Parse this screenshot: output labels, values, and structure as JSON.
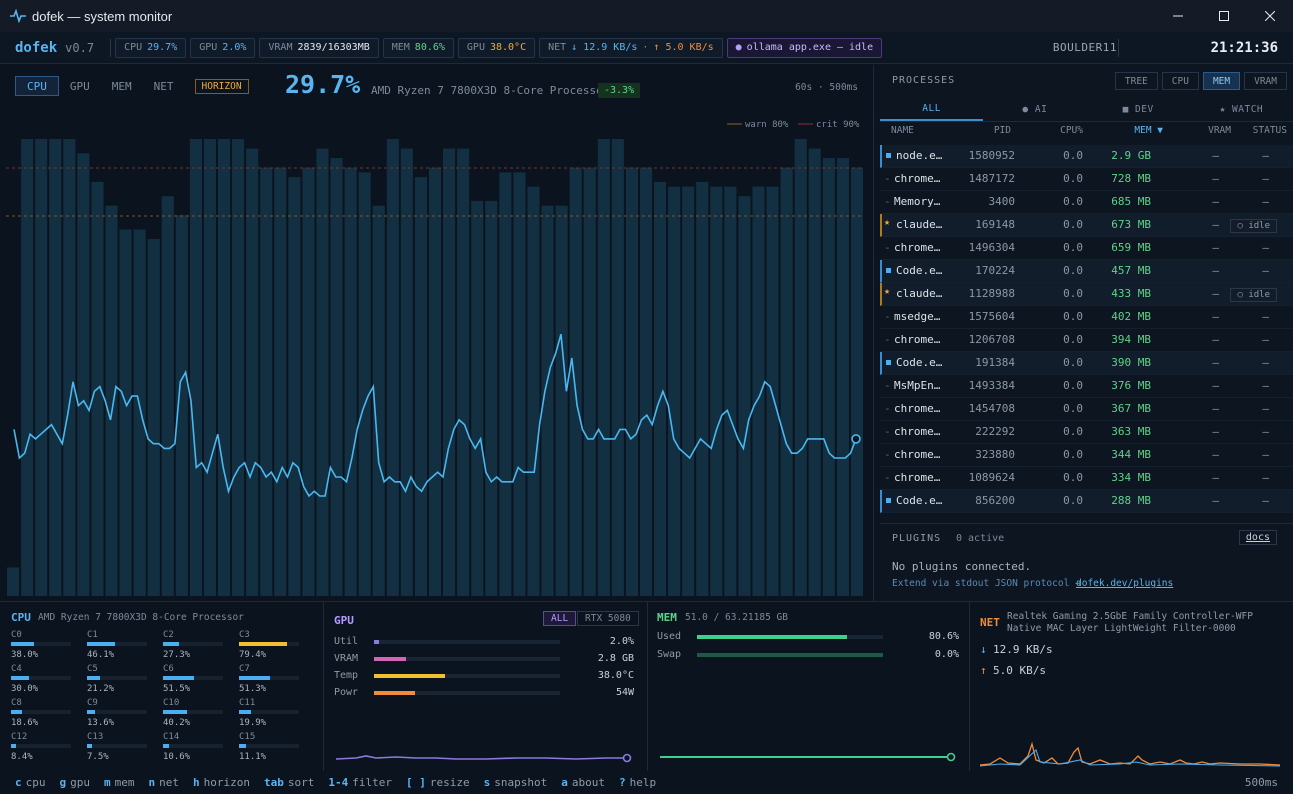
{
  "window": {
    "title": "dofek — system monitor"
  },
  "topbar": {
    "brand": "dofek",
    "version": "v0.7",
    "cpu_label": "CPU",
    "cpu_value": "29.7%",
    "gpu_label": "GPU",
    "gpu_value": "2.0%",
    "vram_label": "VRAM",
    "vram_value": "2839/16303MB",
    "mem_label": "MEM",
    "mem_value": "80.6%",
    "gput_label": "GPU",
    "gput_value": "38.0°C",
    "net_label": "NET",
    "net_down": "↓ 12.9 KB/s",
    "net_dot": "·",
    "net_up": "↑ 5.0 KB/s",
    "ollama": "ollama app.exe — idle",
    "host": "BOULDER11",
    "clock": "21:21:36"
  },
  "main": {
    "tabs": [
      "CPU",
      "GPU",
      "MEM",
      "NET"
    ],
    "active_tab": "CPU",
    "horizon": "HORIZON",
    "big_pct": "29.7%",
    "cpu_name": "AMD Ryzen 7 7800X3D 8-Core Processor",
    "delta": "-3.3%",
    "rate": "60s · 500ms",
    "warn_label": "warn 80%",
    "crit_label": "crit 90%"
  },
  "chart_data": {
    "type": "bar",
    "description_axis": "time samples (60s window, 500ms)",
    "ylim": [
      0,
      100
    ],
    "thresholds": {
      "warn": 80,
      "crit": 90
    },
    "series": [
      {
        "name": "per-sample core peak",
        "values": [
          6,
          74,
          74,
          96,
          96,
          96,
          96,
          96,
          96,
          96,
          96,
          96,
          96,
          96,
          95,
          95,
          93,
          93,
          89,
          87,
          84,
          82,
          82,
          82,
          82,
          79,
          77,
          77,
          77,
          77,
          77,
          76,
          75,
          86,
          87,
          85,
          84,
          80,
          80,
          80,
          80,
          82,
          96,
          96,
          96,
          96,
          96,
          96,
          96,
          96,
          96,
          96,
          96,
          94,
          94,
          94,
          94,
          93,
          90,
          90,
          90,
          90,
          90,
          90,
          88,
          88,
          88,
          88,
          90,
          90,
          90,
          90,
          94,
          94,
          94,
          92,
          92,
          90,
          90,
          90,
          90,
          89,
          89,
          82,
          82,
          82,
          82,
          96,
          96,
          96,
          96,
          94,
          88,
          88,
          88,
          88,
          90,
          90,
          90,
          90,
          90,
          94,
          94,
          94,
          94,
          85,
          85,
          85,
          83,
          83,
          83,
          83,
          89,
          89,
          89,
          89,
          89,
          89,
          89,
          89,
          86,
          86,
          86,
          86,
          82,
          82,
          82,
          82,
          82,
          82,
          82,
          90,
          90,
          90,
          90,
          89,
          89,
          96,
          96,
          96,
          96,
          93,
          93,
          93,
          90,
          90,
          90,
          90,
          87,
          87,
          87,
          84,
          84,
          84,
          86,
          86,
          86,
          86,
          87,
          87,
          87,
          87,
          87,
          86,
          86,
          86,
          86,
          86,
          86,
          84,
          84,
          84,
          84,
          86,
          86,
          86,
          86,
          86,
          90,
          90,
          90,
          90,
          96,
          96,
          96,
          94,
          94,
          94,
          96,
          96,
          92,
          92,
          92,
          92,
          90,
          90,
          90,
          92,
          92,
          96
        ]
      },
      {
        "name": "cpu util",
        "values": [
          35,
          29,
          30,
          34,
          33,
          34,
          35,
          36,
          34,
          32,
          38,
          45,
          40,
          41,
          39,
          43,
          44,
          41,
          37,
          44,
          43,
          40,
          42,
          42,
          37,
          33,
          32,
          32,
          31,
          31,
          32,
          45,
          47,
          41,
          27,
          28,
          26,
          30,
          34,
          27,
          22,
          25,
          27,
          28,
          25,
          28,
          27,
          25,
          26,
          24,
          27,
          25,
          28,
          27,
          23,
          21,
          22,
          21,
          21,
          27,
          25,
          25,
          24,
          29,
          35,
          39,
          42,
          44,
          28,
          24,
          25,
          24,
          24,
          22,
          25,
          23,
          22,
          24,
          25,
          26,
          25,
          31,
          35,
          37,
          36,
          33,
          31,
          33,
          26,
          24,
          25,
          24,
          24,
          24,
          27,
          26,
          26,
          26,
          36,
          43,
          48,
          51,
          55,
          43,
          50,
          40,
          35,
          33,
          33,
          35,
          33,
          33,
          33,
          35,
          35,
          33,
          34,
          37,
          38,
          36,
          40,
          43,
          40,
          33,
          31,
          30,
          29,
          31,
          33,
          32,
          31,
          35,
          38,
          39,
          36,
          33,
          31,
          37,
          40,
          42,
          45,
          44,
          40,
          36,
          32,
          30,
          30,
          31,
          33,
          33,
          33,
          33,
          30,
          29,
          29,
          29,
          30,
          33
        ]
      }
    ]
  },
  "procs": {
    "title": "PROCESSES",
    "view_btns": [
      "TREE",
      "CPU",
      "MEM",
      "VRAM"
    ],
    "active_view": "MEM",
    "filters": [
      "ALL",
      "● AI",
      "■ DEV",
      "★ WATCH"
    ],
    "cols": {
      "name": "NAME",
      "pid": "PID",
      "cpu": "CPU%",
      "mem": "MEM ▼",
      "vram": "VRAM",
      "status": "STATUS"
    },
    "rows": [
      {
        "mark": "sq",
        "name": "node.e…",
        "pid": "1580952",
        "cpu": "0.0",
        "mem": "2.9 GB",
        "vram": "—",
        "status": "—"
      },
      {
        "mark": "dash",
        "name": "chrome…",
        "pid": "1487172",
        "cpu": "0.0",
        "mem": "728 MB",
        "vram": "—",
        "status": "—"
      },
      {
        "mark": "dash",
        "name": "Memory…",
        "pid": "3400",
        "cpu": "0.0",
        "mem": "685 MB",
        "vram": "—",
        "status": "—"
      },
      {
        "mark": "star",
        "name": "claude…",
        "pid": "169148",
        "cpu": "0.0",
        "mem": "673 MB",
        "vram": "—",
        "status": "○ idle"
      },
      {
        "mark": "dash",
        "name": "chrome…",
        "pid": "1496304",
        "cpu": "0.0",
        "mem": "659 MB",
        "vram": "—",
        "status": "—"
      },
      {
        "mark": "sq",
        "name": "Code.e…",
        "pid": "170224",
        "cpu": "0.0",
        "mem": "457 MB",
        "vram": "—",
        "status": "—"
      },
      {
        "mark": "star",
        "name": "claude…",
        "pid": "1128988",
        "cpu": "0.0",
        "mem": "433 MB",
        "vram": "—",
        "status": "○ idle"
      },
      {
        "mark": "dash",
        "name": "msedge…",
        "pid": "1575604",
        "cpu": "0.0",
        "mem": "402 MB",
        "vram": "—",
        "status": "—"
      },
      {
        "mark": "dash",
        "name": "chrome…",
        "pid": "1206708",
        "cpu": "0.0",
        "mem": "394 MB",
        "vram": "—",
        "status": "—"
      },
      {
        "mark": "sq",
        "name": "Code.e…",
        "pid": "191384",
        "cpu": "0.0",
        "mem": "390 MB",
        "vram": "—",
        "status": "—"
      },
      {
        "mark": "dash",
        "name": "MsMpEn…",
        "pid": "1493384",
        "cpu": "0.0",
        "mem": "376 MB",
        "vram": "—",
        "status": "—"
      },
      {
        "mark": "dash",
        "name": "chrome…",
        "pid": "1454708",
        "cpu": "0.0",
        "mem": "367 MB",
        "vram": "—",
        "status": "—"
      },
      {
        "mark": "dash",
        "name": "chrome…",
        "pid": "222292",
        "cpu": "0.0",
        "mem": "363 MB",
        "vram": "—",
        "status": "—"
      },
      {
        "mark": "dash",
        "name": "chrome…",
        "pid": "323880",
        "cpu": "0.0",
        "mem": "344 MB",
        "vram": "—",
        "status": "—"
      },
      {
        "mark": "dash",
        "name": "chrome…",
        "pid": "1089624",
        "cpu": "0.0",
        "mem": "334 MB",
        "vram": "—",
        "status": "—"
      },
      {
        "mark": "sq",
        "name": "Code.e…",
        "pid": "856200",
        "cpu": "0.0",
        "mem": "288 MB",
        "vram": "—",
        "status": "—"
      }
    ],
    "plugins_title": "PLUGINS",
    "plugins_count": "0 active",
    "docs": "docs",
    "plugins_msg": "No plugins connected.",
    "plugins_hint": "Extend via stdout JSON protocol →",
    "plugins_link": "dofek.dev/plugins"
  },
  "cpu_panel": {
    "label": "CPU",
    "name": "AMD Ryzen 7 7800X3D 8-Core Processor",
    "cores": [
      {
        "id": "C0",
        "pct": "38.0%",
        "v": 38.0
      },
      {
        "id": "C1",
        "pct": "46.1%",
        "v": 46.1
      },
      {
        "id": "C2",
        "pct": "27.3%",
        "v": 27.3
      },
      {
        "id": "C3",
        "pct": "79.4%",
        "v": 79.4
      },
      {
        "id": "C4",
        "pct": "30.0%",
        "v": 30.0
      },
      {
        "id": "C5",
        "pct": "21.2%",
        "v": 21.2
      },
      {
        "id": "C6",
        "pct": "51.5%",
        "v": 51.5
      },
      {
        "id": "C7",
        "pct": "51.3%",
        "v": 51.3
      },
      {
        "id": "C8",
        "pct": "18.6%",
        "v": 18.6
      },
      {
        "id": "C9",
        "pct": "13.6%",
        "v": 13.6
      },
      {
        "id": "C10",
        "pct": "40.2%",
        "v": 40.2
      },
      {
        "id": "C11",
        "pct": "19.9%",
        "v": 19.9
      },
      {
        "id": "C12",
        "pct": "8.4%",
        "v": 8.4
      },
      {
        "id": "C13",
        "pct": "7.5%",
        "v": 7.5
      },
      {
        "id": "C14",
        "pct": "10.6%",
        "v": 10.6
      },
      {
        "id": "C15",
        "pct": "11.1%",
        "v": 11.1
      }
    ]
  },
  "gpu_panel": {
    "label": "GPU",
    "btn_all": "ALL",
    "btn_rtx": "RTX 5080",
    "rows": [
      {
        "label": "Util",
        "value": "2.0%",
        "frac": 0.02,
        "color": "#8b7be0"
      },
      {
        "label": "VRAM",
        "value": "2.8 GB",
        "frac": 0.17,
        "color": "#d364b8"
      },
      {
        "label": "Temp",
        "value": "38.0°C",
        "frac": 0.38,
        "color": "#f0c030"
      },
      {
        "label": "Powr",
        "value": "54W",
        "frac": 0.22,
        "color": "#f08c3a"
      }
    ]
  },
  "mem_panel": {
    "label": "MEM",
    "summary": "51.0 / 63.21185 GB",
    "used_label": "Used",
    "used_value": "80.6%",
    "used_frac": 0.806,
    "swap_label": "Swap",
    "swap_value": "0.0%"
  },
  "net_panel": {
    "label": "NET",
    "iface1": "Realtek Gaming 2.5GbE Family Controller-WFP",
    "iface2": "Native MAC Layer LightWeight Filter-0000",
    "down": "12.9 KB/s",
    "up": "5.0 KB/s"
  },
  "footer": {
    "keys": [
      {
        "k": "c",
        "l": "cpu"
      },
      {
        "k": "g",
        "l": "gpu"
      },
      {
        "k": "m",
        "l": "mem"
      },
      {
        "k": "n",
        "l": "net"
      },
      {
        "k": "h",
        "l": "horizon"
      },
      {
        "k": "tab",
        "l": "sort"
      },
      {
        "k": "1-4",
        "l": "filter"
      },
      {
        "k": "[ ]",
        "l": "resize"
      },
      {
        "k": "s",
        "l": "snapshot"
      },
      {
        "k": "a",
        "l": "about"
      },
      {
        "k": "?",
        "l": "help"
      }
    ],
    "interval": "500ms"
  },
  "colors": {
    "accent": "#5ab4f0",
    "green": "#5fd38a",
    "amber": "#f0a93a",
    "purple": "#b79cff",
    "orange": "#f08c3a"
  }
}
